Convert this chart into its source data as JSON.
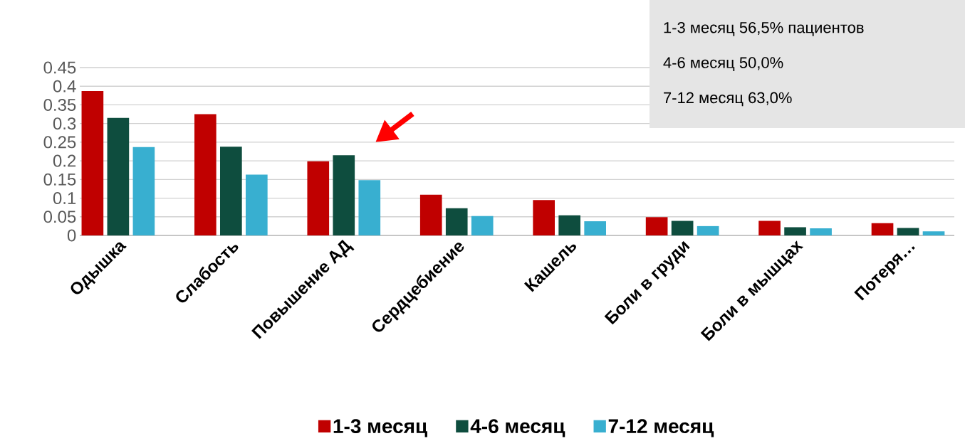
{
  "chart_data": {
    "type": "bar",
    "categories": [
      "Одышка",
      "Слабость",
      "Повышение АД",
      "Сердцебиение",
      "Кашель",
      "Боли в груди",
      "Боли в мышцах",
      "Потеря…"
    ],
    "series": [
      {
        "name": "1-3 месяц",
        "color": "#c00000",
        "values": [
          0.387,
          0.325,
          0.199,
          0.109,
          0.095,
          0.049,
          0.039,
          0.033
        ]
      },
      {
        "name": "4-6 месяц",
        "color": "#0e4d3e",
        "values": [
          0.315,
          0.238,
          0.215,
          0.073,
          0.054,
          0.039,
          0.022,
          0.02
        ]
      },
      {
        "name": "7-12 месяц",
        "color": "#38afd0",
        "values": [
          0.237,
          0.163,
          0.148,
          0.052,
          0.038,
          0.025,
          0.019,
          0.011
        ]
      }
    ],
    "ylim": [
      0,
      0.45
    ],
    "yticks": [
      0,
      0.05,
      0.1,
      0.15,
      0.2,
      0.25,
      0.3,
      0.35,
      0.4,
      0.45
    ],
    "grid": "y",
    "legend": "bottom",
    "annotations": [
      "1-3 месяц 56,5% пациентов",
      "4-6 месяц 50,0%",
      "7-12 месяц 63,0%"
    ]
  }
}
